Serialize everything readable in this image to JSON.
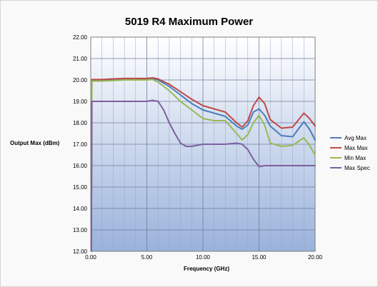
{
  "chart_data": {
    "type": "line",
    "title": "5019 R4 Maximum Power",
    "xlabel": "Frequency (GHz)",
    "ylabel": "Output Max (dBm)",
    "xlim": [
      0,
      20
    ],
    "ylim": [
      12,
      22
    ],
    "x_ticks": [
      "0.00",
      "5.00",
      "10.00",
      "15.00",
      "20.00"
    ],
    "y_ticks": [
      "12.00",
      "13.00",
      "14.00",
      "15.00",
      "16.00",
      "17.00",
      "18.00",
      "19.00",
      "20.00",
      "21.00",
      "22.00"
    ],
    "grid": true,
    "legend_position": "right",
    "series": [
      {
        "name": "Avg Max",
        "color": "#4a7ebb",
        "x": [
          0.05,
          0.1,
          0.5,
          1,
          2,
          3,
          4,
          5,
          5.5,
          6,
          7,
          8,
          9,
          10,
          11,
          12,
          13,
          13.5,
          14,
          14.5,
          15,
          15.5,
          16,
          17,
          18,
          19,
          19.5,
          20
        ],
        "y": [
          12.0,
          20.0,
          20.0,
          20.0,
          20.05,
          20.05,
          20.05,
          20.05,
          20.07,
          20.0,
          19.7,
          19.3,
          18.9,
          18.6,
          18.45,
          18.3,
          17.85,
          17.7,
          17.9,
          18.5,
          18.65,
          18.35,
          17.85,
          17.4,
          17.35,
          18.05,
          17.7,
          17.2
        ]
      },
      {
        "name": "Max Max",
        "color": "#be4b48",
        "x": [
          0.05,
          0.1,
          0.5,
          1,
          2,
          3,
          4,
          5,
          5.5,
          6,
          7,
          8,
          9,
          10,
          11,
          12,
          13,
          13.5,
          14,
          14.5,
          15,
          15.5,
          16,
          17,
          18,
          19,
          19.5,
          20
        ],
        "y": [
          12.0,
          20.02,
          20.02,
          20.02,
          20.05,
          20.07,
          20.07,
          20.07,
          20.1,
          20.05,
          19.8,
          19.45,
          19.1,
          18.8,
          18.65,
          18.5,
          18.0,
          17.8,
          18.1,
          18.8,
          19.2,
          18.9,
          18.15,
          17.75,
          17.8,
          18.45,
          18.2,
          17.85
        ]
      },
      {
        "name": "Min Max",
        "color": "#98b954",
        "x": [
          0.05,
          0.1,
          0.5,
          1,
          2,
          3,
          4,
          5,
          5.5,
          6,
          7,
          8,
          9,
          10,
          11,
          12,
          13,
          13.5,
          14,
          14.5,
          15,
          15.5,
          16,
          17,
          18,
          19,
          19.5,
          20
        ],
        "y": [
          12.0,
          19.95,
          19.95,
          19.95,
          19.97,
          20.0,
          20.0,
          20.0,
          20.02,
          19.9,
          19.5,
          19.0,
          18.6,
          18.2,
          18.1,
          18.1,
          17.5,
          17.2,
          17.45,
          18.0,
          18.35,
          17.9,
          17.05,
          16.9,
          16.95,
          17.3,
          16.95,
          16.5
        ]
      },
      {
        "name": "Max Spec",
        "color": "#7d60a0",
        "x": [
          0.05,
          0.1,
          0.5,
          1,
          2,
          3,
          4,
          5,
          5.5,
          6,
          6.5,
          7,
          7.5,
          8,
          8.5,
          9,
          10,
          11,
          12,
          13,
          13.5,
          14,
          14.5,
          15,
          15.5,
          16,
          17,
          18,
          19,
          20
        ],
        "y": [
          12.0,
          19.0,
          19.0,
          19.0,
          19.0,
          19.0,
          19.0,
          19.0,
          19.05,
          19.0,
          18.6,
          18.0,
          17.5,
          17.05,
          16.9,
          16.9,
          17.0,
          17.0,
          17.0,
          17.05,
          17.0,
          16.75,
          16.3,
          15.95,
          16.0,
          16.0,
          16.0,
          16.0,
          16.0,
          16.0
        ]
      }
    ]
  }
}
